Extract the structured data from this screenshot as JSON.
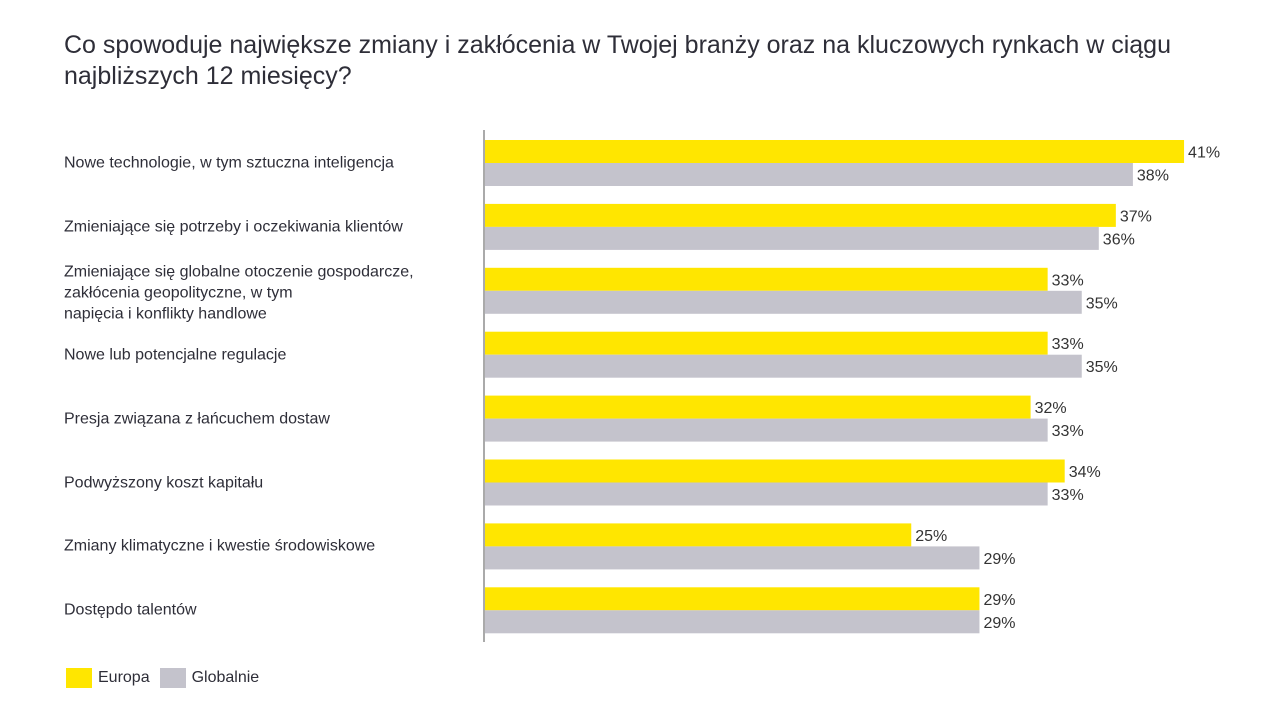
{
  "chart_data": {
    "type": "bar",
    "orientation": "horizontal",
    "title": "Co spowoduje największe zmiany i zakłócenia w Twojej branży oraz na kluczowych rynkach w ciągu najbliższych 12 miesięcy?",
    "categories": [
      "Nowe technologie, w tym sztuczna inteligencja",
      "Zmieniające się potrzeby i oczekiwania klientów",
      "Zmieniające się globalne otoczenie gospodarcze,\nzakłócenia geopolityczne, w tym\nnapięcia i konflikty handlowe",
      "Nowe lub potencjalne regulacje",
      "Presja związana z łańcuchem dostaw",
      "Podwyższony koszt kapitału",
      "Zmiany klimatyczne i kwestie środowiskowe",
      "Dostępdo talentów"
    ],
    "series": [
      {
        "name": "Europa",
        "color": "#FFE600",
        "values": [
          41,
          37,
          33,
          33,
          32,
          34,
          25,
          29
        ]
      },
      {
        "name": "Globalnie",
        "color": "#C4C3CC",
        "values": [
          38,
          36,
          35,
          35,
          33,
          33,
          29,
          29
        ]
      }
    ],
    "value_suffix": "%",
    "xlim": [
      0,
      45
    ],
    "grid": false,
    "legend_placement": "bottom-left"
  }
}
